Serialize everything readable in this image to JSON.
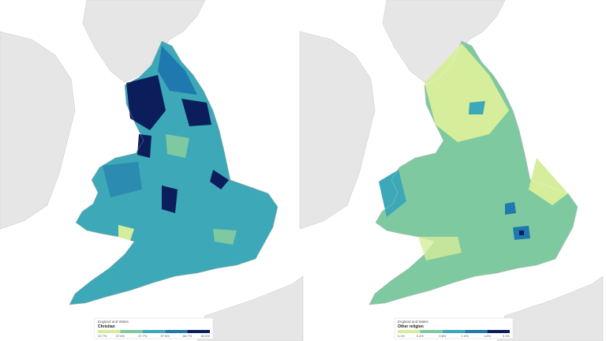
{
  "maps": [
    {
      "legend": {
        "context": "England and Wales",
        "title": "Christian",
        "labels": [
          "22.7%",
          "37.5%",
          "47.7%",
          "57.5%",
          "66.7%",
          "80.6%"
        ],
        "colors": [
          "#d6ee9b",
          "#7fc9a0",
          "#3da8b7",
          "#1f78ae",
          "#0b1e5b"
        ]
      }
    },
    {
      "legend": {
        "context": "England and Wales",
        "title": "Other religion",
        "labels": [
          "0.1%",
          "0.4%",
          "0.6%",
          "1.0%",
          "1.6%",
          "3.1%"
        ],
        "colors": [
          "#d6ee9b",
          "#7fc9a0",
          "#3da8b7",
          "#1f78ae",
          "#0b1e5b"
        ]
      }
    }
  ]
}
